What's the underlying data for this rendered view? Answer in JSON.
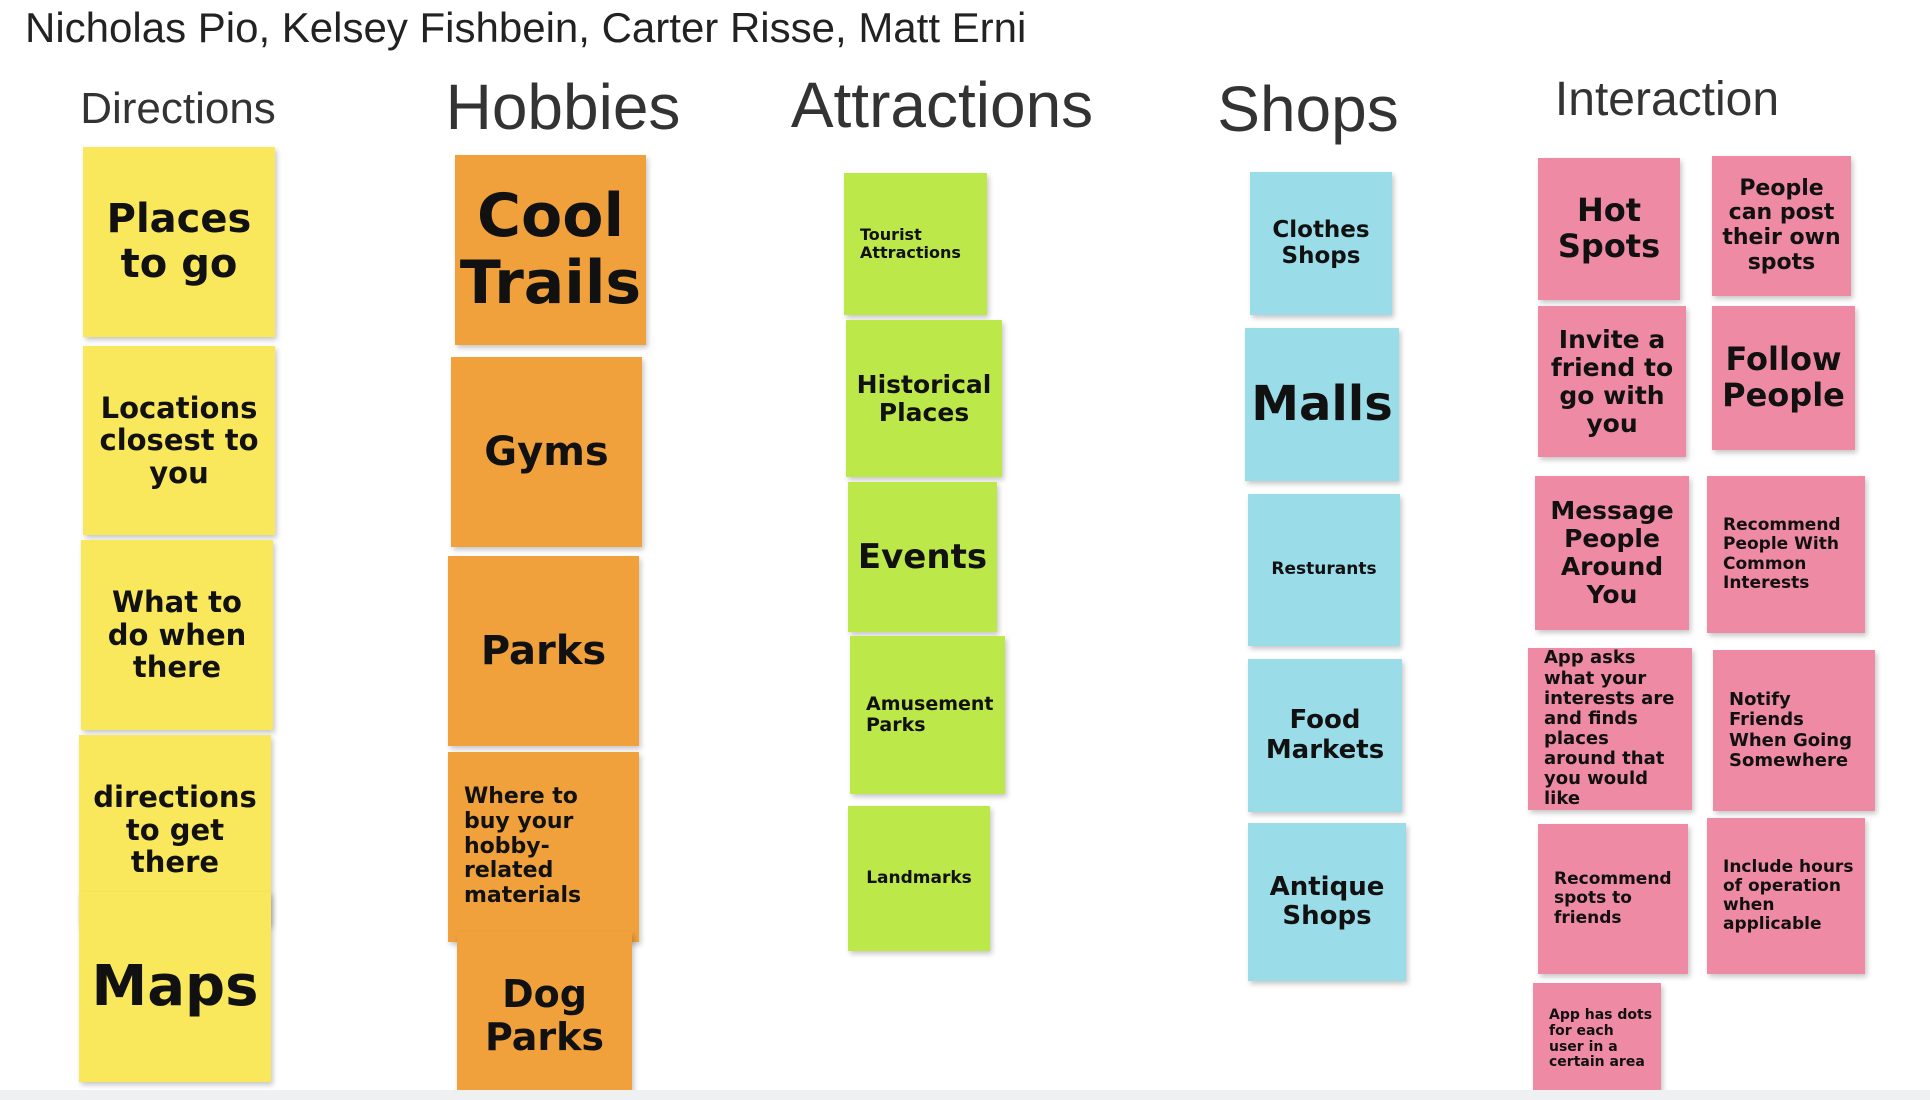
{
  "authors": "Nicholas Pio, Kelsey Fishbein, Carter Risse, Matt Erni",
  "colors": {
    "directions": "#fae85c",
    "hobbies": "#f0a13c",
    "attractions": "#bde84a",
    "shops": "#9adce8",
    "interaction": "#ef8aa4"
  },
  "columns": {
    "directions": {
      "title": "Directions",
      "notes": [
        "Places to go",
        "Locations closest to you",
        "What to do when there",
        "directions to get there",
        "Maps"
      ]
    },
    "hobbies": {
      "title": "Hobbies",
      "notes": [
        "Cool Trails",
        "Gyms",
        "Parks",
        "Where to buy your hobby-related materials",
        "Dog Parks"
      ]
    },
    "attractions": {
      "title": "Attractions",
      "notes": [
        "Tourist Attractions",
        "Historical Places",
        "Events",
        "Amusement Parks",
        "Landmarks"
      ]
    },
    "shops": {
      "title": "Shops",
      "notes": [
        "Clothes Shops",
        "Malls",
        "Resturants",
        "Food Markets",
        "Antique Shops"
      ]
    },
    "interaction": {
      "title": "Interaction",
      "notes": [
        "Hot Spots",
        "People can post their own spots",
        "Invite a friend to go with you",
        "Follow People",
        "Message People Around You",
        "Recommend People With Common Interests",
        "App asks what your interests are and finds places around that you would like",
        "Notify Friends When Going Somewhere",
        "Recommend spots to friends",
        "Include hours of operation when applicable",
        "App has dots for each user in a certain area"
      ]
    }
  }
}
